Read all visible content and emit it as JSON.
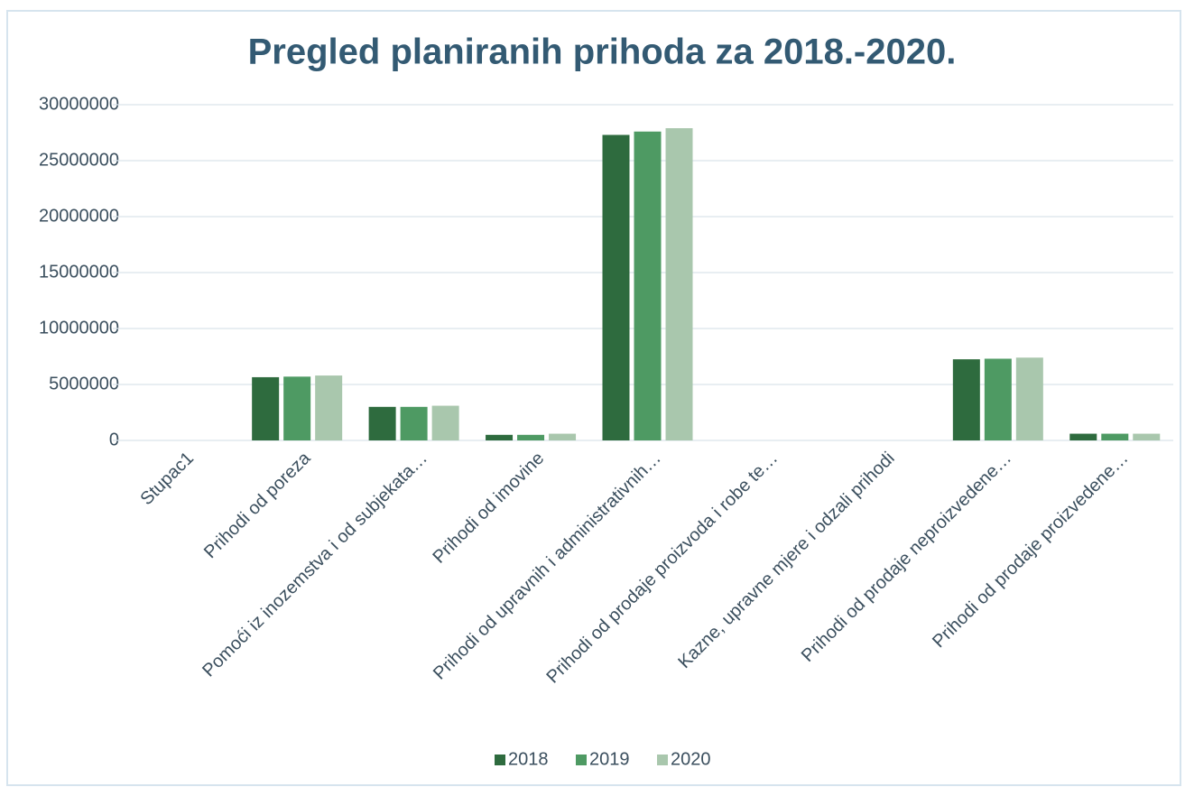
{
  "chart_data": {
    "type": "bar",
    "title": "Pregled planiranih prihoda za 2018.-2020.",
    "categories": [
      "Stupac1",
      "Prihodi od poreza",
      "Pomoći iz inozemstva i od subjekata…",
      "Prihodi od imovine",
      "Prihodi od upravnih i administrativnih…",
      "Prihodi od prodaje proizvoda i robe te…",
      "Kazne, upravne mjere i odzali prihodi",
      "Prihodi od prodaje neproizvedene…",
      "Prihodi od prodaje proizvedene…"
    ],
    "series": [
      {
        "name": "2018",
        "color": "#2e6b3e",
        "values": [
          0,
          5650000,
          3000000,
          500000,
          27300000,
          0,
          0,
          7250000,
          600000
        ]
      },
      {
        "name": "2019",
        "color": "#4e9a63",
        "values": [
          0,
          5700000,
          3000000,
          500000,
          27600000,
          0,
          0,
          7300000,
          600000
        ]
      },
      {
        "name": "2020",
        "color": "#a9c7ad",
        "values": [
          0,
          5800000,
          3100000,
          600000,
          27900000,
          0,
          0,
          7400000,
          600000
        ]
      }
    ],
    "ylim": [
      0,
      30000000
    ],
    "yticks": [
      0,
      5000000,
      10000000,
      15000000,
      20000000,
      25000000,
      30000000
    ],
    "grid": true,
    "legend": "bottom"
  }
}
